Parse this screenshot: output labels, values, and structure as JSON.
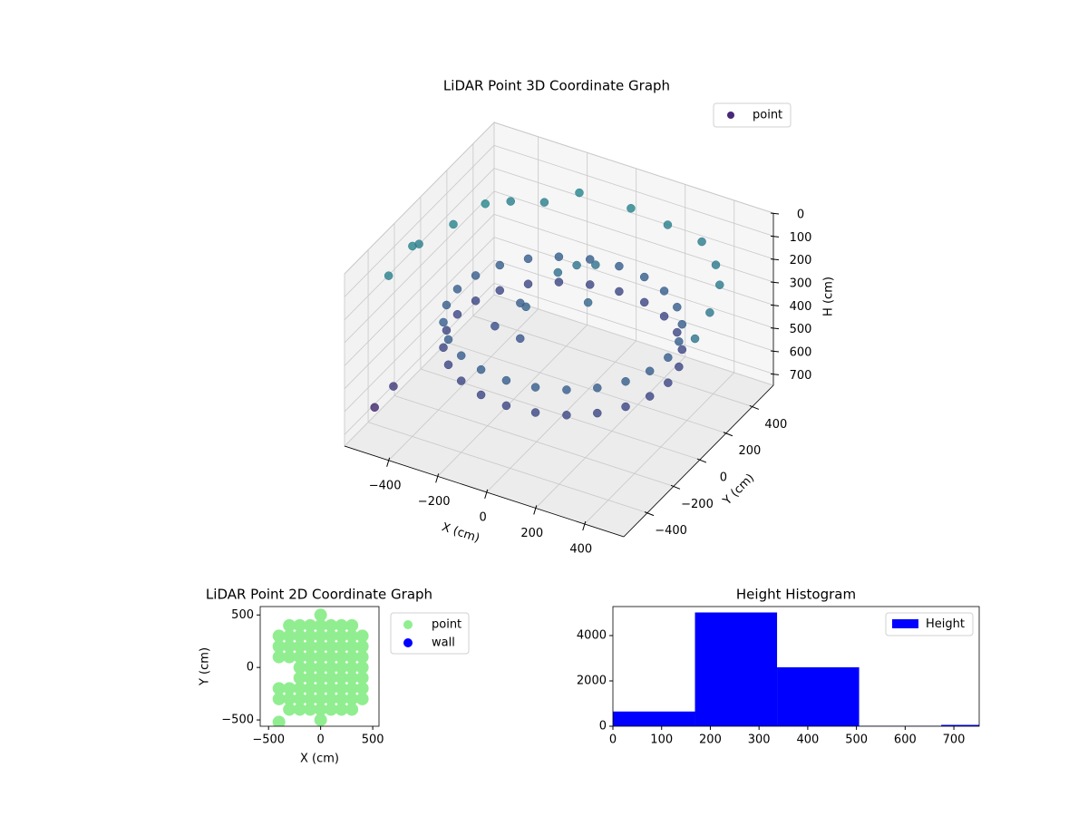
{
  "chart_data": [
    {
      "type": "scatter3d",
      "title": "LiDAR Point 3D Coordinate Graph",
      "xlabel": "X (cm)",
      "ylabel": "Y (cm)",
      "zlabel": "H (cm)",
      "legend": "point",
      "legend_color": "#482878",
      "colormap": "viridis",
      "legend_loc": "upper right",
      "grid": true,
      "xlim": [
        -580,
        560
      ],
      "ylim": [
        -580,
        560
      ],
      "zlim": [
        0,
        750
      ],
      "z_inverted": true,
      "xticks": [
        {
          "value": -400,
          "label": "−400"
        },
        {
          "value": -200,
          "label": "−200"
        },
        0,
        200,
        400
      ],
      "yticks": [
        {
          "value": -400,
          "label": "−400"
        },
        {
          "value": -200,
          "label": "−200"
        },
        0,
        200,
        400
      ],
      "zticks": [
        0,
        100,
        200,
        300,
        400,
        500,
        600,
        700
      ],
      "x": [
        430,
        415,
        372,
        304,
        215,
        111,
        0,
        -111,
        -215,
        -304,
        -372,
        -415,
        -430,
        -415,
        -372,
        -304,
        -215,
        -111,
        0,
        111,
        215,
        304,
        372,
        415,
        430,
        415,
        372,
        304,
        215,
        111,
        0,
        -111,
        -215,
        -304,
        -372,
        -415,
        -430,
        -415,
        -372,
        -304,
        -215,
        -111,
        0,
        111,
        215,
        304,
        372,
        415,
        -100,
        -50,
        0,
        -150,
        -200,
        -120,
        50,
        -250,
        -560,
        -560,
        -500,
        -450,
        -400,
        -300,
        -200,
        0,
        150,
        300,
        400,
        480,
        520,
        540,
        -550,
        -450,
        -500
      ],
      "y": [
        0,
        111,
        215,
        304,
        372,
        415,
        430,
        415,
        372,
        304,
        215,
        111,
        0,
        -111,
        -215,
        -304,
        -372,
        -415,
        -430,
        -415,
        -372,
        -304,
        -215,
        -111,
        0,
        111,
        215,
        304,
        372,
        415,
        430,
        415,
        372,
        304,
        215,
        111,
        0,
        -111,
        -215,
        -304,
        -372,
        -415,
        -430,
        -415,
        -372,
        -304,
        -215,
        -111,
        150,
        200,
        250,
        0,
        50,
        -100,
        100,
        -50,
        -100,
        -50,
        100,
        250,
        350,
        420,
        500,
        520,
        520,
        500,
        420,
        300,
        150,
        0,
        -300,
        -450,
        -500
      ],
      "z": [
        350,
        350,
        350,
        350,
        350,
        350,
        350,
        350,
        350,
        350,
        350,
        350,
        350,
        350,
        350,
        350,
        350,
        350,
        350,
        350,
        350,
        350,
        350,
        350,
        460,
        460,
        460,
        460,
        460,
        460,
        460,
        460,
        460,
        460,
        460,
        460,
        460,
        460,
        460,
        460,
        460,
        460,
        460,
        460,
        460,
        460,
        460,
        460,
        250,
        230,
        240,
        330,
        360,
        400,
        300,
        420,
        150,
        170,
        150,
        130,
        160,
        170,
        140,
        150,
        170,
        180,
        200,
        190,
        210,
        230,
        160,
        520,
        600
      ]
    },
    {
      "type": "scatter",
      "title": "LiDAR Point 2D Coordinate Graph",
      "xlabel": "X (cm)",
      "ylabel": "Y (cm)",
      "legend_loc": "outside right",
      "xlim": [
        -580,
        560
      ],
      "ylim": [
        -560,
        580
      ],
      "xticks": [
        {
          "value": -500,
          "label": "−500"
        },
        0,
        500
      ],
      "yticks": [
        {
          "value": -500,
          "label": "−500"
        },
        0,
        500
      ],
      "series": [
        {
          "name": "point",
          "color": "#90ee90",
          "x": [
            0,
            -300,
            -200,
            -100,
            0,
            100,
            200,
            300,
            -400,
            -300,
            -200,
            -100,
            0,
            100,
            200,
            300,
            400,
            -400,
            -300,
            -200,
            -100,
            0,
            100,
            200,
            300,
            400,
            -400,
            -300,
            -200,
            -100,
            0,
            100,
            200,
            300,
            400,
            -200,
            -100,
            0,
            100,
            200,
            300,
            400,
            -200,
            -100,
            0,
            100,
            200,
            300,
            400,
            -400,
            -300,
            -200,
            -100,
            0,
            100,
            200,
            300,
            400,
            -400,
            -300,
            -200,
            -100,
            0,
            100,
            200,
            300,
            400,
            -300,
            -200,
            -100,
            0,
            100,
            200,
            300,
            0,
            -400
          ],
          "y": [
            500,
            400,
            400,
            400,
            400,
            400,
            400,
            400,
            300,
            300,
            300,
            300,
            300,
            300,
            300,
            300,
            300,
            200,
            200,
            200,
            200,
            200,
            200,
            200,
            200,
            200,
            100,
            100,
            100,
            100,
            100,
            100,
            100,
            100,
            100,
            0,
            0,
            0,
            0,
            0,
            0,
            0,
            -100,
            -100,
            -100,
            -100,
            -100,
            -100,
            -100,
            -200,
            -200,
            -200,
            -200,
            -200,
            -200,
            -200,
            -200,
            -200,
            -300,
            -300,
            -300,
            -300,
            -300,
            -300,
            -300,
            -300,
            -300,
            -400,
            -400,
            -400,
            -400,
            -400,
            -400,
            -400,
            -500,
            -520
          ]
        },
        {
          "name": "wall",
          "color": "#0000ff",
          "x": [],
          "y": []
        }
      ]
    },
    {
      "type": "histogram",
      "title": "Height Histogram",
      "legend": "Height",
      "color": "#0000ff",
      "legend_loc": "upper right",
      "bins": [
        0,
        168.5,
        337,
        505.5,
        674,
        842.5
      ],
      "counts": [
        650,
        5020,
        2600,
        20,
        60
      ],
      "xlim": [
        0,
        752
      ],
      "ylim": [
        0,
        5280
      ],
      "xticks": [
        0,
        100,
        200,
        300,
        400,
        500,
        600,
        700
      ],
      "yticks": [
        0,
        2000,
        4000
      ]
    }
  ]
}
